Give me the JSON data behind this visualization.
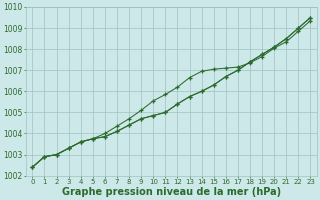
{
  "x": [
    0,
    1,
    2,
    3,
    4,
    5,
    6,
    7,
    8,
    9,
    10,
    11,
    12,
    13,
    14,
    15,
    16,
    17,
    18,
    19,
    20,
    21,
    22,
    23
  ],
  "line_low": [
    1002.4,
    1002.9,
    1003.0,
    1003.3,
    1003.6,
    1003.75,
    1003.85,
    1004.1,
    1004.4,
    1004.7,
    1004.85,
    1005.0,
    1005.4,
    1005.75,
    1006.0,
    1006.3,
    1006.7,
    1007.0,
    1007.4,
    1007.75,
    1008.1,
    1008.5,
    1009.0,
    1009.5
  ],
  "line_mid": [
    1002.4,
    1002.9,
    1003.0,
    1003.3,
    1003.6,
    1003.75,
    1003.85,
    1004.1,
    1004.4,
    1004.7,
    1004.85,
    1005.0,
    1005.4,
    1005.75,
    1006.0,
    1006.3,
    1006.7,
    1007.0,
    1007.4,
    1007.75,
    1008.1,
    1008.5,
    1009.0,
    1009.5
  ],
  "line_high": [
    1002.4,
    1002.9,
    1003.0,
    1003.3,
    1003.6,
    1003.75,
    1004.0,
    1004.35,
    1004.7,
    1005.1,
    1005.55,
    1005.85,
    1006.2,
    1006.65,
    1006.95,
    1007.05,
    1007.1,
    1007.15,
    1007.35,
    1007.65,
    1008.05,
    1008.35,
    1008.85,
    1009.35
  ],
  "ylim": [
    1002,
    1010
  ],
  "yticks": [
    1002,
    1003,
    1004,
    1005,
    1006,
    1007,
    1008,
    1009,
    1010
  ],
  "xticks": [
    0,
    1,
    2,
    3,
    4,
    5,
    6,
    7,
    8,
    9,
    10,
    11,
    12,
    13,
    14,
    15,
    16,
    17,
    18,
    19,
    20,
    21,
    22,
    23
  ],
  "xlabel": "Graphe pression niveau de la mer (hPa)",
  "line_color": "#2d6a2d",
  "bg_color": "#cce8e8",
  "grid_color": "#a0c0c0",
  "title_color": "#2d6a2d"
}
